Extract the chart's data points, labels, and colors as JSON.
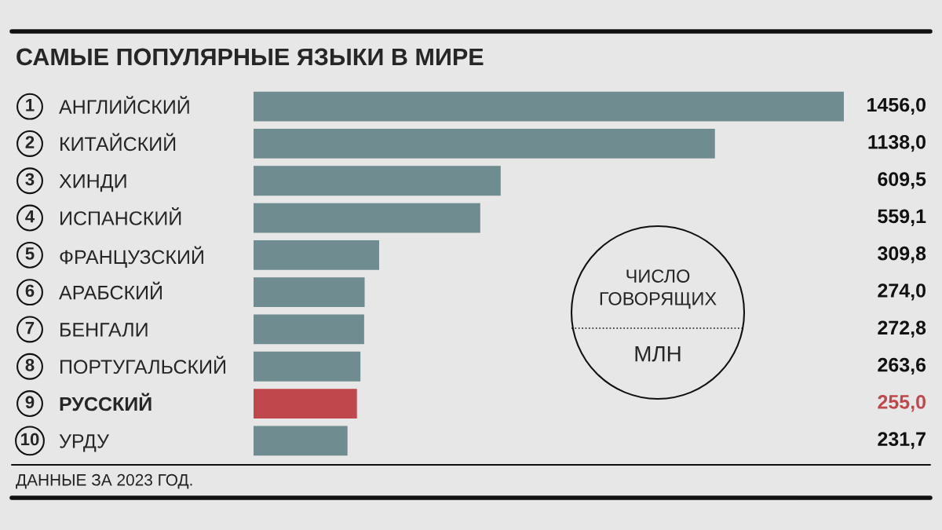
{
  "chart_data": {
    "type": "bar",
    "orientation": "horizontal",
    "title": "САМЫЕ ПОПУЛЯРНЫЕ ЯЗЫКИ В МИРЕ",
    "categories": [
      "АНГЛИЙСКИЙ",
      "КИТАЙСКИЙ",
      "ХИНДИ",
      "ИСПАНСКИЙ",
      "ФРАНЦУЗСКИЙ",
      "АРАБСКИЙ",
      "БЕНГАЛИ",
      "ПОРТУГАЛЬСКИЙ",
      "РУССКИЙ",
      "УРДУ"
    ],
    "values": [
      1456.0,
      1138.0,
      609.5,
      559.1,
      309.8,
      274.0,
      272.8,
      263.6,
      255.0,
      231.7
    ],
    "colors": [
      "#6f8d90",
      "#6f8d90",
      "#6f8d90",
      "#6f8d90",
      "#6f8d90",
      "#6f8d90",
      "#6f8d90",
      "#6f8d90",
      "#c0484c",
      "#6f8d90"
    ],
    "value_labels": [
      "1456,0",
      "1138,0",
      "609,5",
      "559,1",
      "309,8",
      "274,0",
      "272,8",
      "263,6",
      "255,0",
      "231,7"
    ],
    "annotations": [
      "1",
      "2",
      "3",
      "4",
      "5",
      "6",
      "7",
      "8",
      "9",
      "10",
      "ЧИСЛО\nГОВОРЯЩИХ",
      "МЛН",
      "ДАННЫЕ ЗА 2023 ГОД."
    ],
    "grid": false
  }
}
